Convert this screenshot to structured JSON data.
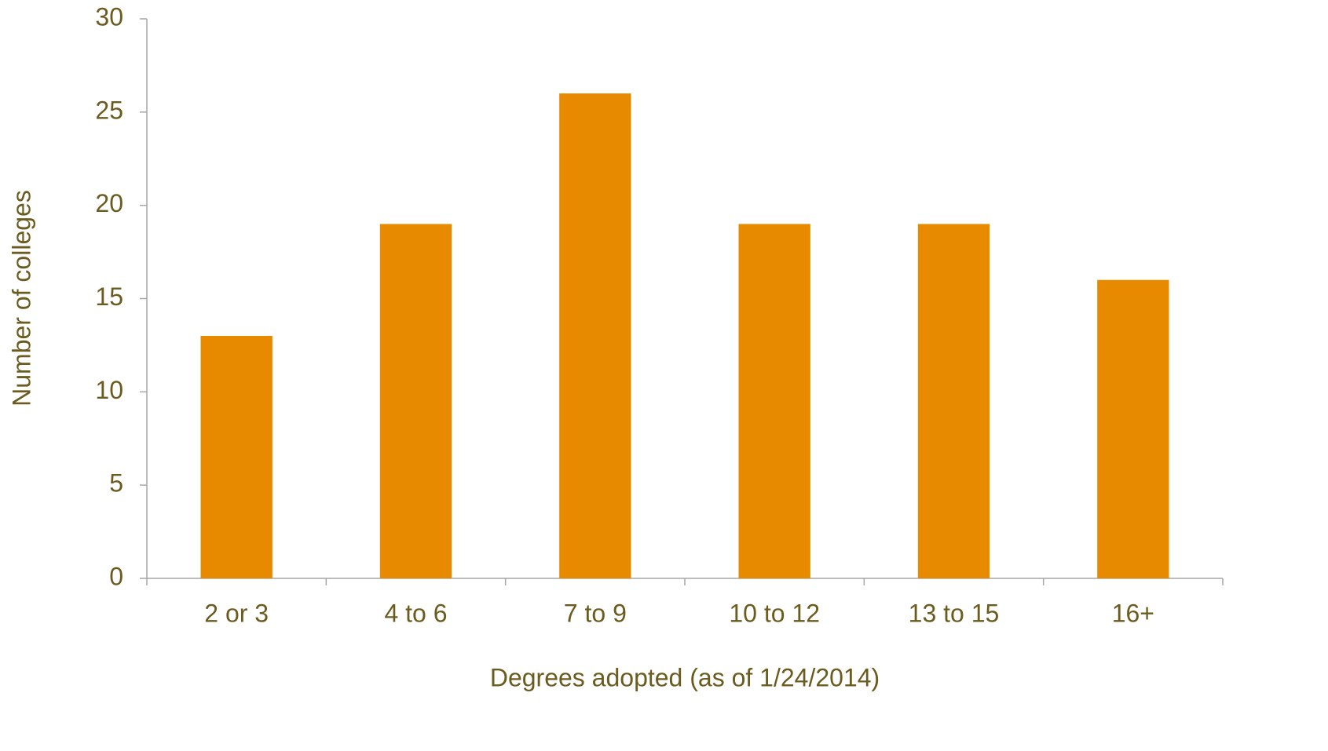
{
  "chart_data": {
    "type": "bar",
    "x_label": "Degrees adopted (as of 1/24/2014)",
    "y_label": "Number of colleges",
    "categories": [
      "2 or 3",
      "4 to 6",
      "7 to 9",
      "10 to 12",
      "13 to 15",
      "16+"
    ],
    "values": [
      13,
      19,
      26,
      19,
      19,
      16
    ],
    "color": "#e88a00",
    "ylim": [
      0,
      30
    ],
    "yticks": [
      0,
      5,
      10,
      15,
      20,
      25,
      30
    ],
    "grid": false
  }
}
